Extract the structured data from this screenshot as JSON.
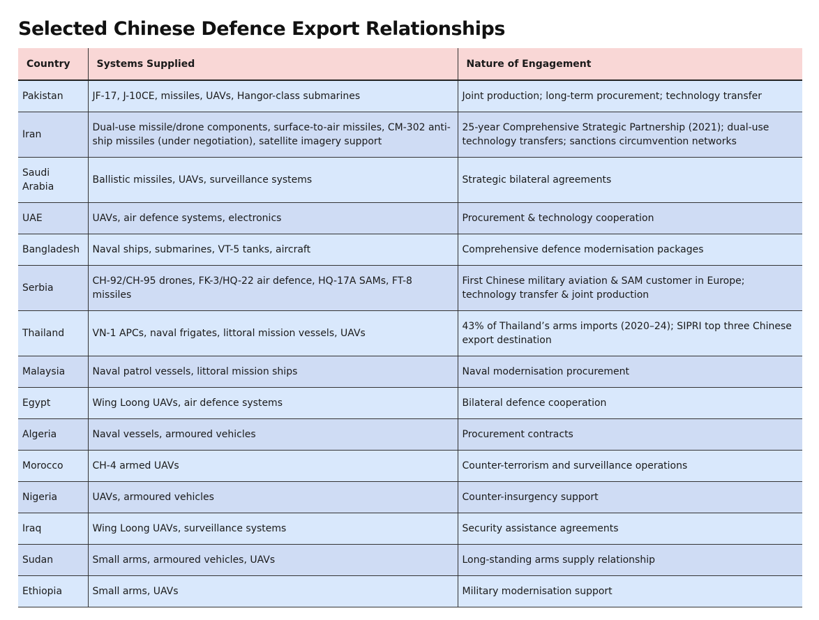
{
  "header": {
    "title": "Selected Chinese Defence Export Relationships"
  },
  "table": {
    "columns": [
      "Country",
      "Systems Supplied",
      "Nature of Engagement"
    ],
    "rows": [
      [
        "Pakistan",
        "JF-17, J-10CE, missiles, UAVs, Hangor-class submarines",
        "Joint production; long-term procurement; technology transfer"
      ],
      [
        "Iran",
        "Dual-use missile/drone components, surface-to-air missiles, CM-302 anti-ship missiles (under negotiation), satellite imagery support",
        "25-year Comprehensive Strategic Partnership (2021); dual-use technology transfers; sanctions circumvention networks"
      ],
      [
        "Saudi Arabia",
        "Ballistic missiles, UAVs, surveillance systems",
        "Strategic bilateral agreements"
      ],
      [
        "UAE",
        "UAVs, air defence systems, electronics",
        "Procurement & technology cooperation"
      ],
      [
        "Bangladesh",
        "Naval ships, submarines, VT-5 tanks, aircraft",
        "Comprehensive defence modernisation packages"
      ],
      [
        "Serbia",
        "CH-92/CH-95 drones, FK-3/HQ-22 air defence, HQ-17A SAMs, FT-8 missiles",
        "First Chinese military aviation & SAM customer in Europe; technology transfer & joint production"
      ],
      [
        "Thailand",
        "VN-1 APCs, naval frigates, littoral mission vessels, UAVs",
        "43% of Thailand’s arms imports (2020–24); SIPRI top three Chinese export destination"
      ],
      [
        "Malaysia",
        "Naval patrol vessels, littoral mission ships",
        "Naval modernisation procurement"
      ],
      [
        "Egypt",
        "Wing Loong UAVs, air defence systems",
        "Bilateral defence cooperation"
      ],
      [
        "Algeria",
        "Naval vessels, armoured vehicles",
        "Procurement contracts"
      ],
      [
        "Morocco",
        "CH-4 armed UAVs",
        "Counter-terrorism and surveillance operations"
      ],
      [
        "Nigeria",
        "UAVs, armoured vehicles",
        "Counter-insurgency support"
      ],
      [
        "Iraq",
        "Wing Loong UAVs, surveillance systems",
        "Security assistance agreements"
      ],
      [
        "Sudan",
        "Small arms, armoured vehicles, UAVs",
        "Long-standing arms supply relationship"
      ],
      [
        "Ethiopia",
        "Small arms, UAVs",
        "Military modernisation support"
      ]
    ]
  }
}
